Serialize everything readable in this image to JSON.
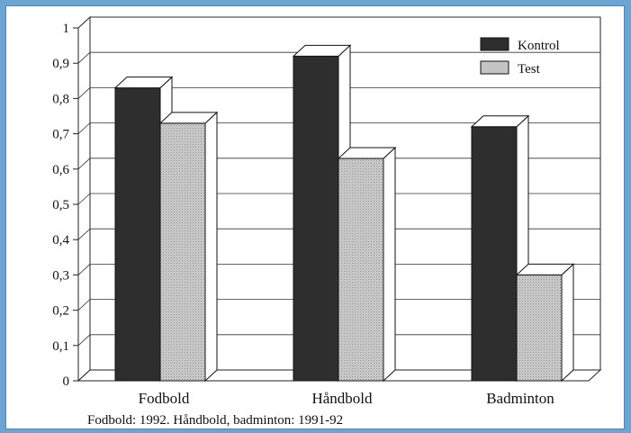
{
  "chart_data": {
    "type": "bar",
    "categories": [
      "Fodbold",
      "Håndbold",
      "Badminton"
    ],
    "series": [
      {
        "name": "Kontrol",
        "values": [
          0.83,
          0.92,
          0.72
        ],
        "color": "#2a2a2a"
      },
      {
        "name": "Test",
        "values": [
          0.73,
          0.63,
          0.3
        ],
        "color": "#c4c4c4"
      }
    ],
    "ylim": [
      0,
      1
    ],
    "yticks": [
      "0",
      "0,1",
      "0,2",
      "0,3",
      "0,4",
      "0,5",
      "0,6",
      "0,7",
      "0,8",
      "0,9",
      "1"
    ],
    "grid": true,
    "legend_position": "top-right",
    "style": "3d-bars"
  },
  "footnote": "Fodbold: 1992. Håndbold, badminton: 1991-92"
}
